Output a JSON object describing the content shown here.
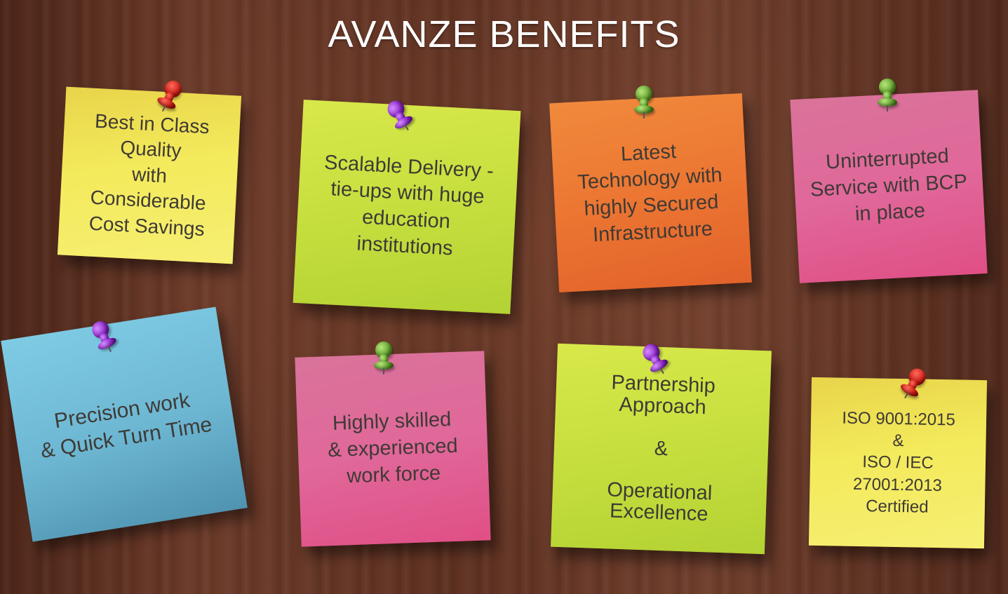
{
  "title": "AVANZE BENEFITS",
  "notes": [
    {
      "text": "Best in Class\nQuality\nwith\nConsiderable\nCost Savings",
      "pin": "red-pushpin-icon"
    },
    {
      "text": "Scalable Delivery -\ntie-ups with huge\neducation\ninstitutions",
      "pin": "purple-pushpin-icon"
    },
    {
      "text": "Latest\nTechnology with\nhighly Secured\nInfrastructure",
      "pin": "green-pushpin-icon"
    },
    {
      "text": "Uninterrupted\nService with BCP\nin place",
      "pin": "green-pushpin-icon"
    },
    {
      "text": "Precision work\n& Quick Turn Time",
      "pin": "purple-pushpin-icon"
    },
    {
      "text": "Highly skilled\n& experienced\nwork force",
      "pin": "green-pushpin-icon"
    },
    {
      "text": "Partnership\nApproach\n\n&\n\nOperational\nExcellence",
      "pin": "purple-pushpin-icon"
    },
    {
      "text": "ISO 9001:2015\n&\nISO / IEC 27001:2013\nCertified",
      "pin": "red-pushpin-icon"
    }
  ],
  "colors": {
    "yellow": "#f2e64a",
    "lime": "#c3e03a",
    "orange": "#f07a34",
    "pink": "#e0608c",
    "blue": "#6fbcd6"
  }
}
